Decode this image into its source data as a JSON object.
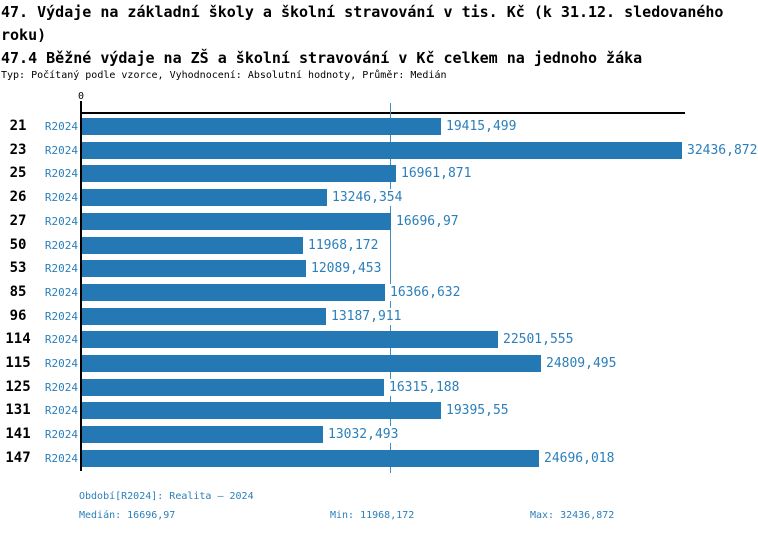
{
  "header": {
    "title": "47. Výdaje na základní školy a školní stravování v tis. Kč (k 31.12. sledovaného roku)",
    "subtitle": "47.4 Běžné výdaje na ZŠ a školní stravování v Kč celkem na jednoho žáka",
    "meta": "Typ: Počítaný podle vzorce, Vyhodnocení: Absolutní hodnoty, Průměr: Medián"
  },
  "chart_data": {
    "type": "bar",
    "orientation": "horizontal",
    "title": "47.4 Běžné výdaje na ZŠ a školní stravování v Kč celkem na jednoho žáka",
    "categories": [
      "21",
      "23",
      "25",
      "26",
      "27",
      "50",
      "53",
      "85",
      "96",
      "114",
      "115",
      "125",
      "131",
      "141",
      "147"
    ],
    "series_label": "R2024",
    "values": [
      19415.499,
      32436.872,
      16961.871,
      13246.354,
      16696.97,
      11968.172,
      12089.453,
      16366.632,
      13187.911,
      22501.555,
      24809.495,
      16315.188,
      19395.55,
      13032.493,
      24696.018
    ],
    "value_labels": [
      "19415,499",
      "32436,872",
      "16961,871",
      "13246,354",
      "16696,97",
      "11968,172",
      "12089,453",
      "16366,632",
      "13187,911",
      "22501,555",
      "24809,495",
      "16315,188",
      "19395,55",
      "13032,493",
      "24696,018"
    ],
    "xlim": [
      0,
      32436.872
    ],
    "x_axis_ticks": [
      "0"
    ],
    "median": 16696.97,
    "grid": false,
    "legend": false,
    "bar_color": "#2478B4",
    "label_color": "#2B7FBA",
    "median_line_color": "#3D8EC4",
    "axis_color": "#000000"
  },
  "footer": {
    "period": "Období[R2024]: Realita – 2024",
    "median": "Medián: 16696,97",
    "min": "Min: 11968,172",
    "max": "Max: 32436,872"
  }
}
